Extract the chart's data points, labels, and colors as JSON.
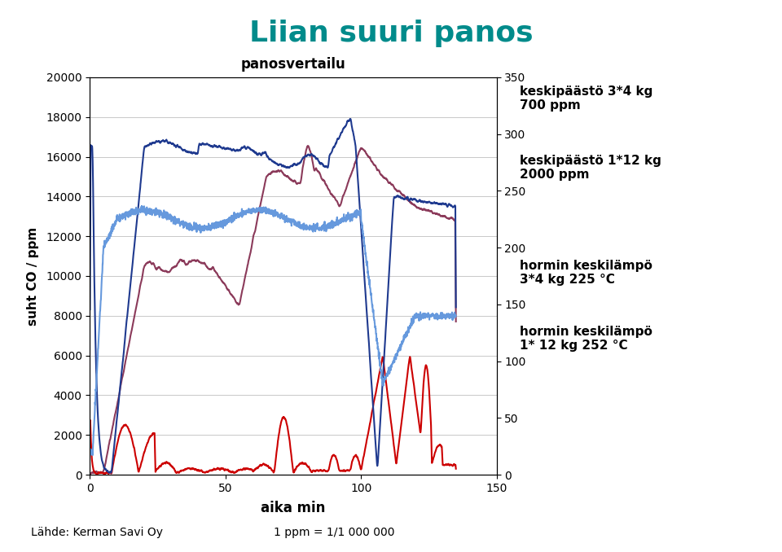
{
  "title": "Liian suuri panos",
  "title_color": "#008B8B",
  "subtitle": "panosvertailu",
  "xlabel": "aika min",
  "ylabel": "suht CO / ppm",
  "footer_left": "Lähde: Kerman Savi Oy",
  "footer_right": "1 ppm = 1/1 000 000",
  "ylim_left": [
    0,
    20000
  ],
  "ylim_right": [
    0,
    350
  ],
  "xlim": [
    0,
    150
  ],
  "yticks_left": [
    0,
    2000,
    4000,
    6000,
    8000,
    10000,
    12000,
    14000,
    16000,
    18000,
    20000
  ],
  "yticks_right": [
    0,
    50,
    100,
    150,
    200,
    250,
    300,
    350
  ],
  "xticks": [
    0,
    50,
    100,
    150
  ],
  "annotation1": "keskipäästö 3*4 kg\n700 ppm",
  "annotation2": "keskipäästö 1*12 kg\n2000 ppm",
  "annotation3": "hormin keskilämpö\n3*4 kg 225 °C",
  "annotation4": "hormin keskilämpö\n1* 12 kg 252 °C",
  "color_dark_blue": "#1F3A8F",
  "color_purple": "#8B3A5A",
  "color_light_blue": "#6699DD",
  "color_red": "#CC0000",
  "background_color": "#FFFFFF"
}
